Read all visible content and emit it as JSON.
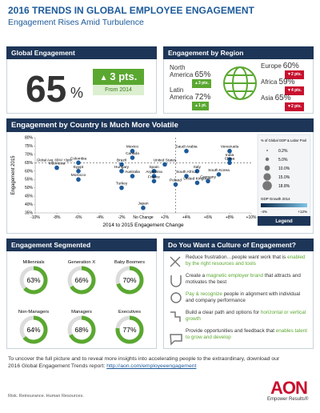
{
  "header": {
    "title": "2016 TRENDS IN GLOBAL EMPLOYEE ENGAGEMENT",
    "subtitle": "Engagement Rises Amid Turbulence"
  },
  "global": {
    "heading": "Global Engagement",
    "value": "65",
    "unit": "%",
    "change": "3 pts.",
    "since": "From 2014"
  },
  "regions": {
    "heading": "Engagement by Region",
    "items": [
      {
        "name": "North America",
        "value": "65%",
        "change": "3 pts.",
        "direction": "up"
      },
      {
        "name": "Latin America",
        "value": "72%",
        "change": "1 pt.",
        "direction": "up"
      },
      {
        "name": "Europe",
        "value": "60%",
        "change": "2 pts.",
        "direction": "down"
      },
      {
        "name": "Africa",
        "value": "59%",
        "change": "4 pts.",
        "direction": "down"
      },
      {
        "name": "Asia",
        "value": "65%",
        "change": "2 pts.",
        "direction": "down"
      }
    ]
  },
  "chart_data": [
    {
      "type": "scatter",
      "title": "Engagement by Country Is Much More Volatile",
      "x_label": "2014 to 2015 Engagement Change",
      "y_label": "Engagement 2015",
      "color": "#1d5a9a",
      "xlim": [
        -10,
        10
      ],
      "ylim": [
        35,
        80
      ],
      "xticks": [
        {
          "value": -10,
          "label": "-10%"
        },
        {
          "value": -8,
          "label": "-8%"
        },
        {
          "value": -6,
          "label": "-6%"
        },
        {
          "value": -4,
          "label": "-4%"
        },
        {
          "value": -2,
          "label": "-2%"
        },
        {
          "value": 0,
          "label": "No Change"
        },
        {
          "value": 2,
          "label": "+2%"
        },
        {
          "value": 4,
          "label": "+4%"
        },
        {
          "value": 6,
          "label": "+6%"
        },
        {
          "value": 8,
          "label": "+8%"
        },
        {
          "value": 10,
          "label": "+10%"
        }
      ],
      "yticks": [
        {
          "value": 35,
          "label": "35%"
        },
        {
          "value": 40,
          "label": "40%"
        },
        {
          "value": 45,
          "label": "45%"
        },
        {
          "value": 50,
          "label": "50%"
        },
        {
          "value": 55,
          "label": "55%"
        },
        {
          "value": 60,
          "label": "60%"
        },
        {
          "value": 65,
          "label": "65%"
        },
        {
          "value": 70,
          "label": "70%"
        },
        {
          "value": 75,
          "label": "75%"
        },
        {
          "value": 80,
          "label": "80%"
        }
      ],
      "reference": {
        "x": 3,
        "y": 65,
        "label": "Global Avg. 65%/ +3pts."
      },
      "points": [
        {
          "label": "Indonesia",
          "x": -8,
          "y": 62
        },
        {
          "label": "Colombia",
          "x": -6,
          "y": 65
        },
        {
          "label": "Egypt",
          "x": -6,
          "y": 60
        },
        {
          "label": "Morocco",
          "x": -6,
          "y": 55
        },
        {
          "label": "Mexico",
          "x": -1,
          "y": 72
        },
        {
          "label": "Canada",
          "x": -1,
          "y": 68
        },
        {
          "label": "Brazil",
          "x": -2,
          "y": 64
        },
        {
          "label": "Hungary",
          "x": -2,
          "y": 60
        },
        {
          "label": "Australia",
          "x": -1,
          "y": 57
        },
        {
          "label": "Turkey",
          "x": -2,
          "y": 50
        },
        {
          "label": "United States",
          "x": 2,
          "y": 64
        },
        {
          "label": "Spain",
          "x": 1,
          "y": 60
        },
        {
          "label": "Argentina",
          "x": 1,
          "y": 57
        },
        {
          "label": "France",
          "x": 1,
          "y": 54
        },
        {
          "label": "Japan",
          "x": 0,
          "y": 38
        },
        {
          "label": "Saudi Arabia",
          "x": 4,
          "y": 72
        },
        {
          "label": "Venezuela",
          "x": 8,
          "y": 72
        },
        {
          "label": "India",
          "x": 8,
          "y": 67
        },
        {
          "label": "China",
          "x": 8,
          "y": 65
        },
        {
          "label": "Italy",
          "x": 5,
          "y": 60
        },
        {
          "label": "Poland",
          "x": 3,
          "y": 52
        },
        {
          "label": "South Africa",
          "x": 4,
          "y": 57
        },
        {
          "label": "United Kingdom",
          "x": 5,
          "y": 53
        },
        {
          "label": "South Korea",
          "x": 7,
          "y": 58
        },
        {
          "label": "Germany",
          "x": 6,
          "y": 54
        }
      ],
      "legend": {
        "title": "% of Global GDP & Labor Pool",
        "sizes": [
          "0.2%",
          "5.0%",
          "10.0%",
          "15.0%",
          "18.8%"
        ],
        "gdp_title": "GDP Growth 2014",
        "gdp_min": "-4%",
        "gdp_max": "+12%",
        "label": "Legend"
      }
    },
    {
      "type": "donut",
      "title": "Engagement Segmented",
      "color": "#5aa830",
      "track": "#dcdcdc",
      "categories": [
        "Millennials",
        "Generation X",
        "Baby Boomers",
        "Non-Managers",
        "Managers",
        "Executives"
      ],
      "values": [
        63,
        66,
        70,
        64,
        68,
        77
      ],
      "value_labels": [
        "63%",
        "66%",
        "70%",
        "64%",
        "68%",
        "77%"
      ]
    }
  ],
  "culture": {
    "heading": "Do You Want a Culture of Engagement?",
    "items": [
      [
        {
          "t": "Reduce frustration…people want work that is "
        },
        {
          "t": "enabled by the right resources and tools",
          "hl": true
        }
      ],
      [
        {
          "t": "Create a "
        },
        {
          "t": "magnetic employer brand",
          "hl": true
        },
        {
          "t": " that attracts and motivates the best"
        }
      ],
      [
        {
          "t": "Pay & recognize",
          "hl": true
        },
        {
          "t": " people in alignment with individual and company performance"
        }
      ],
      [
        {
          "t": "Build a clear path and options for "
        },
        {
          "t": "horizontal or vertical growth",
          "hl": true
        }
      ],
      [
        {
          "t": "Provide opportunities and feedback that "
        },
        {
          "t": "enables talent to grow and develop",
          "hl": true
        }
      ]
    ]
  },
  "footer": {
    "text": "To uncover the full picture and to reveal more insights into accelerating people to the extraordinary, download our 2016 Global Engagement Trends report: ",
    "link": "http://aon.com/employeeengagement",
    "tagline": "Risk. Reinsurance. Human Resources.",
    "logo": "AON",
    "logo_tagline": "Empower Results®"
  }
}
